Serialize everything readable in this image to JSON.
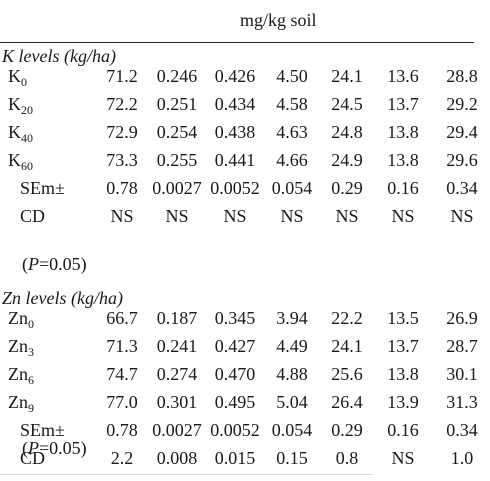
{
  "header": {
    "unit": "mg/kg soil"
  },
  "k_section": {
    "title": "K levels (kg/ha)",
    "rows": [
      {
        "label": "K",
        "sub": "0",
        "values": [
          "71.2",
          "0.246",
          "0.426",
          "4.50",
          "24.1",
          "13.6",
          "28.8"
        ]
      },
      {
        "label": "K",
        "sub": "20",
        "values": [
          "72.2",
          "0.251",
          "0.434",
          "4.58",
          "24.5",
          "13.7",
          "29.2"
        ]
      },
      {
        "label": "K",
        "sub": "40",
        "values": [
          "72.9",
          "0.254",
          "0.438",
          "4.63",
          "24.8",
          "13.8",
          "29.4"
        ]
      },
      {
        "label": "K",
        "sub": "60",
        "values": [
          "73.3",
          "0.255",
          "0.441",
          "4.66",
          "24.9",
          "13.8",
          "29.6"
        ]
      },
      {
        "label": "SEm±",
        "sub": "",
        "values": [
          "0.78",
          "0.0027",
          "0.0052",
          "0.054",
          "0.29",
          "0.16",
          "0.34"
        ]
      },
      {
        "label": "CD",
        "sub": "",
        "values": [
          "NS",
          "NS",
          "NS",
          "NS",
          "NS",
          "NS",
          "NS"
        ]
      }
    ],
    "cd_note_p": "P",
    "cd_note_rest": "=0.05)"
  },
  "zn_section": {
    "title": "Zn levels (kg/ha)",
    "rows": [
      {
        "label": "Zn",
        "sub": "0",
        "values": [
          "66.7",
          "0.187",
          "0.345",
          "3.94",
          "22.2",
          "13.5",
          "26.9"
        ]
      },
      {
        "label": "Zn",
        "sub": "3",
        "values": [
          "71.3",
          "0.241",
          "0.427",
          "4.49",
          "24.1",
          "13.7",
          "28.7"
        ]
      },
      {
        "label": "Zn",
        "sub": "6",
        "values": [
          "74.7",
          "0.274",
          "0.470",
          "4.88",
          "25.6",
          "13.8",
          "30.1"
        ]
      },
      {
        "label": "Zn",
        "sub": "9",
        "values": [
          "77.0",
          "0.301",
          "0.495",
          "5.04",
          "26.4",
          "13.9",
          "31.3"
        ]
      },
      {
        "label": "SEm±",
        "sub": "",
        "values": [
          "0.78",
          "0.0027",
          "0.0052",
          "0.054",
          "0.29",
          "0.16",
          "0.34"
        ]
      },
      {
        "label": "CD",
        "sub": "",
        "values": [
          "2.2",
          "0.008",
          "0.015",
          "0.15",
          "0.8",
          "NS",
          "1.0"
        ]
      }
    ],
    "cd_note_p": "P",
    "cd_note_rest": "=0.05)"
  }
}
